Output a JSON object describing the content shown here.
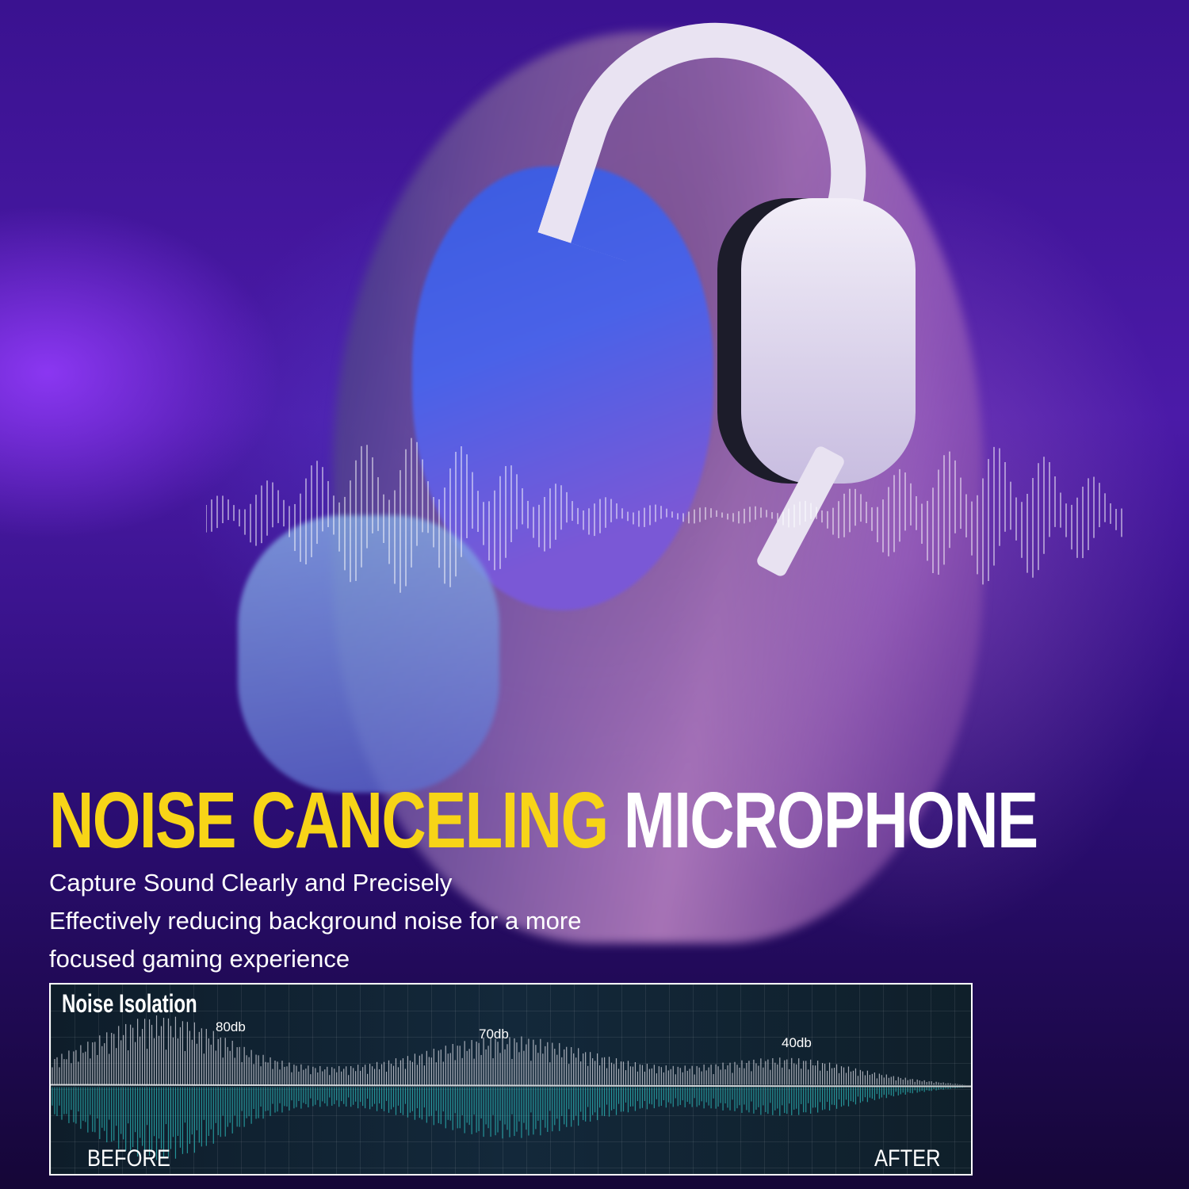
{
  "headline": {
    "part1": "NOISE CANCELING",
    "part2": "MICROPHONE"
  },
  "subtitle": {
    "line1": "Capture Sound Clearly and Precisely",
    "line2": "Effectively reducing background noise for a more",
    "line3": "focused gaming experience"
  },
  "panel": {
    "title": "Noise Isolation",
    "labels": [
      "80db",
      "70db",
      "40db"
    ],
    "before": "BEFORE",
    "after": "AFTER"
  },
  "colors": {
    "headline_accent": "#f7d417",
    "wave_top": "#e8e8f0",
    "wave_bottom": "#2ec4c4",
    "background": "#3a1290"
  }
}
